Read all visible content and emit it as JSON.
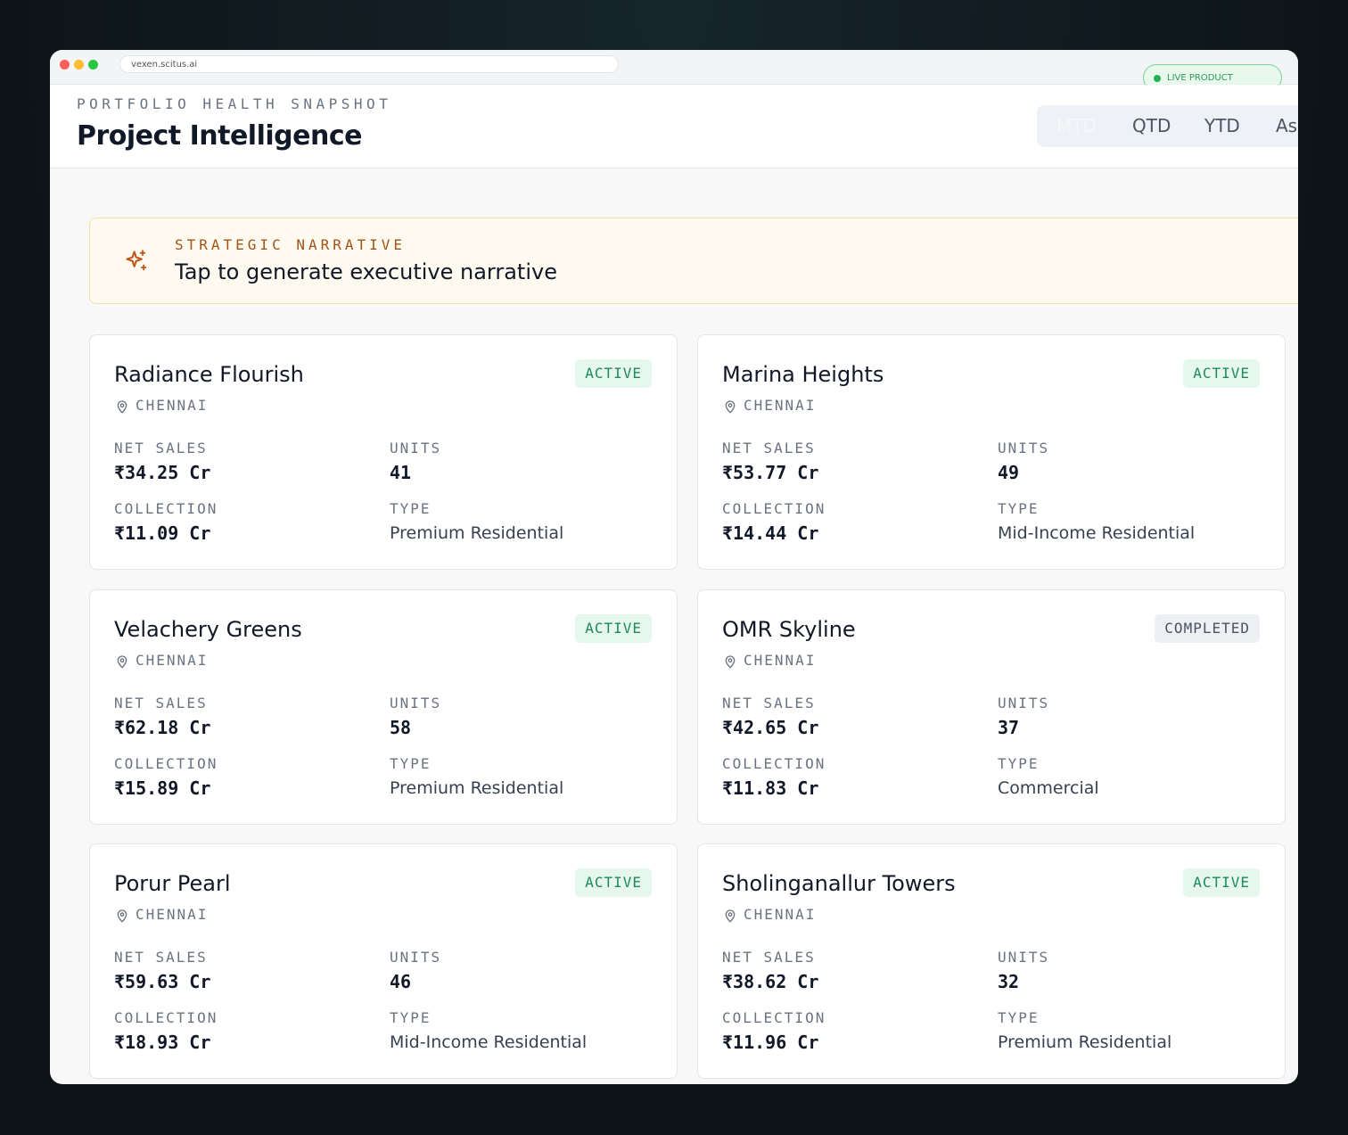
{
  "browser": {
    "url": "vexen.scitus.ai",
    "badge": "LIVE PRODUCT"
  },
  "header": {
    "eyebrow": "PORTFOLIO HEALTH SNAPSHOT",
    "title": "Project Intelligence",
    "tabs": [
      "MTD",
      "QTD",
      "YTD",
      "As"
    ]
  },
  "narrative": {
    "eyebrow": "STRATEGIC NARRATIVE",
    "text": "Tap to generate executive narrative"
  },
  "labels": {
    "net_sales": "NET SALES",
    "units": "UNITS",
    "collection": "COLLECTION",
    "type": "TYPE"
  },
  "projects": [
    {
      "name": "Radiance Flourish",
      "status": "ACTIVE",
      "location": "CHENNAI",
      "net_sales": "₹34.25 Cr",
      "units": 41,
      "collection": "₹11.09 Cr",
      "type": "Premium Residential"
    },
    {
      "name": "Marina Heights",
      "status": "ACTIVE",
      "location": "CHENNAI",
      "net_sales": "₹53.77 Cr",
      "units": 49,
      "collection": "₹14.44 Cr",
      "type": "Mid-Income Residential"
    },
    {
      "name": "Velachery Greens",
      "status": "ACTIVE",
      "location": "CHENNAI",
      "net_sales": "₹62.18 Cr",
      "units": 58,
      "collection": "₹15.89 Cr",
      "type": "Premium Residential"
    },
    {
      "name": "OMR Skyline",
      "status": "COMPLETED",
      "location": "CHENNAI",
      "net_sales": "₹42.65 Cr",
      "units": 37,
      "collection": "₹11.83 Cr",
      "type": "Commercial"
    },
    {
      "name": "Porur Pearl",
      "status": "ACTIVE",
      "location": "CHENNAI",
      "net_sales": "₹59.63 Cr",
      "units": 46,
      "collection": "₹18.93 Cr",
      "type": "Mid-Income Residential"
    },
    {
      "name": "Sholinganallur Towers",
      "status": "ACTIVE",
      "location": "CHENNAI",
      "net_sales": "₹38.62 Cr",
      "units": 32,
      "collection": "₹11.96 Cr",
      "type": "Premium Residential"
    }
  ]
}
